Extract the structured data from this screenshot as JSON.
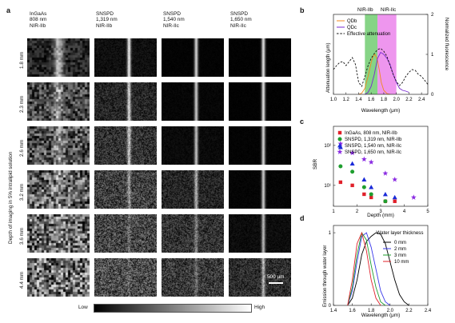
{
  "panel_a": {
    "label": "a",
    "columns": [
      {
        "lines": [
          "InGaAs",
          "808 nm",
          "NIR-IIb"
        ]
      },
      {
        "lines": [
          "SNSPD",
          "1,319 nm",
          "NIR-IIb"
        ]
      },
      {
        "lines": [
          "SNSPD",
          "1,540 nm",
          "NIR-IIc"
        ]
      },
      {
        "lines": [
          "SNSPD",
          "1,650 nm",
          "NIR-IIc"
        ]
      }
    ],
    "rows": [
      "1.8 mm",
      "2.3 mm",
      "2.6 mm",
      "3.2 mm",
      "3.6 mm",
      "4.4 mm"
    ],
    "ylabel": "Depth of imaging in 5% intralipid solution",
    "scalebar": "500 μm",
    "colorbar": {
      "low": "Low",
      "high": "High"
    }
  },
  "chart_data": [
    {
      "panel": "b",
      "type": "line",
      "xlabel": "Wavelength (μm)",
      "ylabel_left": "Attenuation length (μm)",
      "ylabel_right": "Normalized fluorescence",
      "xlim": [
        1.0,
        2.5
      ],
      "ylim_right": [
        0,
        2
      ],
      "x_ticks": [
        "1.0",
        "1.2",
        "1.4",
        "1.6",
        "1.8",
        "2.0",
        "2.2",
        "2.4"
      ],
      "y_right_ticks": [
        "0",
        "1",
        "2"
      ],
      "bands": [
        {
          "name": "NIR-IIb",
          "x": [
            1.5,
            1.7
          ],
          "color": "#22b022"
        },
        {
          "name": "NIR-IIc",
          "x": [
            1.7,
            2.0
          ],
          "color": "#e040e0"
        }
      ],
      "series": [
        {
          "name": "QDb",
          "color": "#f08a20",
          "style": "solid",
          "x": [
            1.4,
            1.45,
            1.5,
            1.55,
            1.6,
            1.63,
            1.66,
            1.7,
            1.73,
            1.76,
            1.8,
            1.85,
            1.9
          ],
          "y": [
            0.0,
            0.03,
            0.15,
            0.45,
            0.8,
            0.95,
            1.0,
            0.85,
            0.6,
            0.3,
            0.1,
            0.02,
            0.0
          ]
        },
        {
          "name": "QDc",
          "color": "#7a2ad0",
          "style": "solid",
          "x": [
            1.5,
            1.55,
            1.6,
            1.65,
            1.7,
            1.75,
            1.8,
            1.85,
            1.9,
            1.95,
            2.0,
            2.05,
            2.1,
            2.15,
            2.2
          ],
          "y": [
            0.0,
            0.05,
            0.2,
            0.5,
            0.9,
            1.05,
            1.0,
            0.9,
            0.75,
            0.5,
            0.3,
            0.15,
            0.1,
            0.08,
            0.05
          ]
        },
        {
          "name": "Effective attenuation",
          "color": "#111111",
          "style": "dashed",
          "x": [
            1.0,
            1.05,
            1.1,
            1.15,
            1.2,
            1.25,
            1.3,
            1.35,
            1.4,
            1.45,
            1.5,
            1.55,
            1.6,
            1.65,
            1.7,
            1.75,
            1.8,
            1.85,
            1.9,
            1.95,
            2.0,
            2.05,
            2.1,
            2.15,
            2.2,
            2.25,
            2.3,
            2.35,
            2.4,
            2.45,
            2.5
          ],
          "y": [
            0.62,
            0.72,
            0.8,
            0.82,
            0.72,
            0.82,
            0.92,
            0.75,
            0.3,
            0.2,
            0.45,
            0.72,
            0.9,
            1.02,
            1.12,
            1.15,
            1.08,
            0.95,
            0.72,
            0.5,
            0.32,
            0.22,
            0.3,
            0.45,
            0.55,
            0.62,
            0.6,
            0.5,
            0.45,
            0.35,
            0.25
          ]
        }
      ]
    },
    {
      "panel": "c",
      "type": "scatter",
      "xlabel": "Depth (mm)",
      "ylabel": "SBR",
      "yscale": "log",
      "xlim": [
        1,
        5
      ],
      "ylim": [
        3,
        300
      ],
      "x_ticks": [
        "1",
        "2",
        "3",
        "4",
        "5"
      ],
      "y_ticks": [
        "10¹",
        "10²"
      ],
      "series": [
        {
          "name": "InGaAs, 808 nm, NIR-IIb",
          "color": "#e0202a",
          "marker": "square",
          "x": [
            1.3,
            1.8,
            2.3,
            2.6,
            3.2,
            3.6
          ],
          "y": [
            12,
            10,
            6,
            5,
            4,
            4
          ]
        },
        {
          "name": "SNSPD, 1,319 nm, NIR-IIb",
          "color": "#1e9e2e",
          "marker": "circle",
          "x": [
            1.3,
            1.8,
            2.3,
            2.6,
            3.2
          ],
          "y": [
            30,
            22,
            9,
            6,
            4
          ]
        },
        {
          "name": "SNSPD, 1,540 nm, NIR-IIc",
          "color": "#1a2ad8",
          "marker": "triangle",
          "x": [
            1.3,
            1.8,
            2.3,
            2.6,
            3.2,
            3.6
          ],
          "y": [
            90,
            35,
            14,
            9,
            6,
            5
          ]
        },
        {
          "name": "SNSPD, 1,650 nm, NIR-IIc",
          "color": "#8a2be2",
          "marker": "star",
          "x": [
            1.3,
            1.8,
            2.3,
            2.6,
            3.2,
            3.6,
            4.4
          ],
          "y": [
            110,
            65,
            45,
            38,
            20,
            14,
            5
          ]
        }
      ]
    },
    {
      "panel": "d",
      "type": "line",
      "xlabel": "Wavelength (μm)",
      "ylabel": "Emission through water layer",
      "legend_title": "Water layer thickness",
      "xlim": [
        1.4,
        2.4
      ],
      "ylim": [
        0,
        1.1
      ],
      "x_ticks": [
        "1.4",
        "1.6",
        "1.8",
        "2.0",
        "2.2",
        "2.4"
      ],
      "y_ticks": [
        "0",
        "1"
      ],
      "series": [
        {
          "name": "0 mm",
          "color": "#000000",
          "x": [
            1.55,
            1.6,
            1.65,
            1.7,
            1.75,
            1.8,
            1.85,
            1.9,
            1.95,
            2.0,
            2.05,
            2.1,
            2.15,
            2.2
          ],
          "y": [
            0.0,
            0.1,
            0.35,
            0.7,
            0.88,
            0.95,
            1.0,
            0.98,
            0.85,
            0.6,
            0.35,
            0.15,
            0.05,
            0.0
          ]
        },
        {
          "name": "2 mm",
          "color": "#3a3aea",
          "x": [
            1.55,
            1.6,
            1.65,
            1.7,
            1.75,
            1.8,
            1.85,
            1.9,
            1.95,
            2.0
          ],
          "y": [
            0.0,
            0.2,
            0.6,
            0.95,
            1.0,
            0.8,
            0.5,
            0.2,
            0.05,
            0.0
          ]
        },
        {
          "name": "3 mm",
          "color": "#1e9e2e",
          "x": [
            1.55,
            1.6,
            1.65,
            1.7,
            1.75,
            1.8,
            1.85,
            1.9,
            1.95
          ],
          "y": [
            0.0,
            0.25,
            0.7,
            1.0,
            0.9,
            0.55,
            0.25,
            0.05,
            0.0
          ]
        },
        {
          "name": "10 mm",
          "color": "#e0202a",
          "x": [
            1.55,
            1.6,
            1.65,
            1.7,
            1.75,
            1.8,
            1.85,
            1.9
          ],
          "y": [
            0.0,
            0.35,
            0.85,
            1.0,
            0.75,
            0.35,
            0.1,
            0.0
          ]
        }
      ]
    }
  ],
  "panel_labels": {
    "b": "b",
    "c": "c",
    "d": "d"
  }
}
